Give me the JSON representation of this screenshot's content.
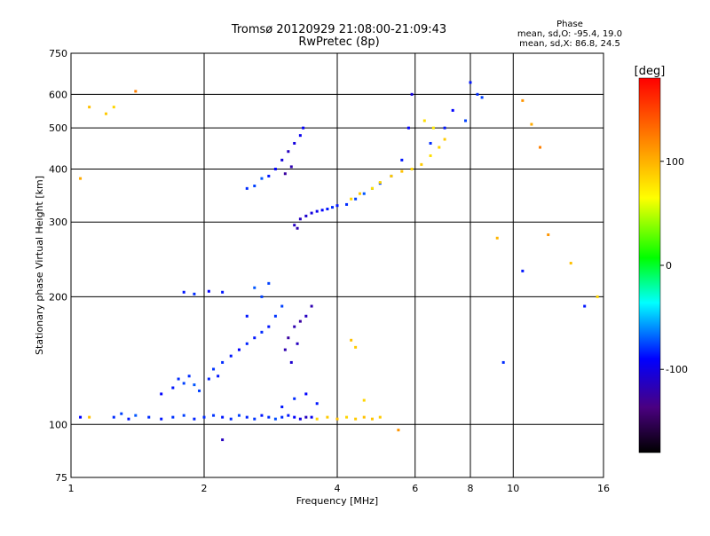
{
  "chart_data": {
    "type": "scatter",
    "title": "Tromsø 20120929 21:08:00-21:09:43",
    "subtitle": "RwPretec (8p)",
    "xlabel": "Frequency [MHz]",
    "ylabel": "Stationary phase Virtual Height [km]",
    "x_scale": "log",
    "y_scale": "log",
    "xlim": [
      1,
      16
    ],
    "ylim": [
      75,
      750
    ],
    "x_ticks": [
      1,
      2,
      4,
      6,
      8,
      10,
      16
    ],
    "y_ticks": [
      75,
      100,
      200,
      300,
      400,
      500,
      600,
      750
    ],
    "grid": true,
    "stats": {
      "title": "Phase",
      "line1": "mean, sd,O: -95.4, 19.0",
      "line2": "mean, sd,X:  86.8, 24.5"
    },
    "colorbar": {
      "label": "[deg]",
      "range": [
        -180,
        180
      ],
      "ticks": [
        100,
        0,
        -100
      ]
    },
    "series": [
      {
        "points": [
          [
            1.25,
            104,
            -90
          ],
          [
            1.3,
            106,
            -85
          ],
          [
            1.35,
            103,
            -95
          ],
          [
            1.4,
            105,
            -80
          ],
          [
            1.5,
            104,
            -90
          ],
          [
            1.6,
            103,
            -95
          ],
          [
            1.7,
            104,
            -88
          ],
          [
            1.8,
            105,
            -85
          ],
          [
            1.9,
            103,
            -92
          ],
          [
            2.0,
            104,
            -90
          ],
          [
            2.1,
            105,
            -88
          ],
          [
            2.2,
            104,
            -95
          ],
          [
            2.3,
            103,
            -90
          ],
          [
            2.4,
            105,
            -85
          ],
          [
            2.5,
            104,
            -92
          ],
          [
            2.6,
            103,
            -88
          ],
          [
            2.7,
            105,
            -95
          ],
          [
            2.8,
            104,
            -90
          ],
          [
            2.9,
            103,
            -82
          ],
          [
            3.0,
            104,
            -90
          ],
          [
            3.1,
            105,
            -95
          ],
          [
            3.2,
            104,
            -100
          ],
          [
            3.3,
            103,
            -110
          ],
          [
            3.4,
            104,
            -120
          ],
          [
            3.5,
            104,
            -105
          ],
          [
            1.6,
            118,
            -100
          ],
          [
            1.7,
            122,
            -95
          ],
          [
            1.75,
            128,
            -90
          ],
          [
            1.8,
            125,
            -85
          ],
          [
            1.85,
            130,
            -90
          ],
          [
            1.9,
            124,
            -80
          ],
          [
            1.95,
            120,
            -85
          ],
          [
            2.05,
            128,
            -92
          ],
          [
            2.1,
            135,
            -88
          ],
          [
            2.15,
            130,
            -95
          ],
          [
            2.2,
            140,
            -90
          ],
          [
            2.3,
            145,
            -95
          ],
          [
            2.4,
            150,
            -100
          ],
          [
            2.5,
            155,
            -92
          ],
          [
            2.6,
            160,
            -95
          ],
          [
            2.7,
            165,
            -90
          ],
          [
            2.8,
            170,
            -95
          ],
          [
            2.9,
            180,
            -88
          ],
          [
            3.0,
            190,
            -85
          ],
          [
            2.7,
            200,
            -85
          ],
          [
            2.5,
            180,
            -95
          ],
          [
            2.6,
            210,
            -80
          ],
          [
            2.8,
            215,
            -85
          ],
          [
            3.05,
            150,
            -125
          ],
          [
            3.1,
            160,
            -130
          ],
          [
            3.2,
            170,
            -125
          ],
          [
            3.3,
            175,
            -130
          ],
          [
            3.4,
            180,
            -120
          ],
          [
            3.5,
            190,
            -125
          ],
          [
            3.15,
            140,
            -115
          ],
          [
            3.25,
            155,
            -120
          ],
          [
            1.8,
            205,
            -95
          ],
          [
            1.9,
            203,
            -90
          ],
          [
            2.05,
            206,
            -100
          ],
          [
            2.2,
            205,
            -95
          ],
          [
            2.5,
            360,
            -90
          ],
          [
            2.6,
            365,
            -85
          ],
          [
            2.7,
            380,
            -80
          ],
          [
            2.8,
            385,
            -95
          ],
          [
            2.9,
            400,
            -100
          ],
          [
            3.0,
            420,
            -110
          ],
          [
            3.1,
            440,
            -120
          ],
          [
            3.2,
            460,
            -110
          ],
          [
            3.3,
            480,
            -105
          ],
          [
            3.35,
            500,
            -100
          ],
          [
            3.05,
            390,
            -130
          ],
          [
            3.15,
            405,
            -125
          ],
          [
            3.3,
            305,
            -120
          ],
          [
            3.4,
            310,
            -115
          ],
          [
            3.5,
            315,
            -110
          ],
          [
            3.6,
            318,
            -105
          ],
          [
            3.7,
            320,
            -100
          ],
          [
            3.8,
            322,
            -95
          ],
          [
            3.9,
            325,
            -90
          ],
          [
            4.0,
            328,
            -95
          ],
          [
            4.2,
            330,
            -90
          ],
          [
            4.4,
            340,
            -85
          ],
          [
            4.6,
            350,
            -80
          ],
          [
            4.8,
            360,
            -75
          ],
          [
            5.0,
            370,
            -85
          ],
          [
            5.3,
            385,
            -90
          ],
          [
            5.6,
            420,
            -95
          ],
          [
            5.8,
            500,
            -100
          ],
          [
            5.9,
            600,
            -110
          ],
          [
            3.2,
            295,
            -120
          ],
          [
            3.25,
            290,
            -125
          ],
          [
            6.5,
            460,
            -90
          ],
          [
            7.0,
            500,
            -95
          ],
          [
            7.3,
            550,
            -100
          ],
          [
            7.8,
            520,
            -85
          ],
          [
            8.0,
            640,
            -95
          ],
          [
            8.3,
            600,
            -90
          ],
          [
            8.5,
            590,
            -85
          ],
          [
            3.0,
            110,
            -95
          ],
          [
            3.2,
            115,
            -90
          ],
          [
            3.4,
            118,
            -100
          ],
          [
            3.6,
            112,
            -95
          ],
          [
            2.2,
            92,
            -120
          ],
          [
            1.05,
            104,
            -100
          ],
          [
            10.5,
            230,
            -95
          ],
          [
            9.5,
            140,
            -90
          ],
          [
            14.5,
            190,
            -95
          ]
        ]
      },
      {
        "points": [
          [
            3.6,
            103,
            80
          ],
          [
            3.8,
            104,
            85
          ],
          [
            4.0,
            103,
            90
          ],
          [
            4.2,
            104,
            80
          ],
          [
            4.4,
            103,
            85
          ],
          [
            4.6,
            104,
            90
          ],
          [
            4.8,
            103,
            88
          ],
          [
            5.0,
            104,
            85
          ],
          [
            4.3,
            340,
            80
          ],
          [
            4.5,
            350,
            85
          ],
          [
            4.8,
            360,
            75
          ],
          [
            5.0,
            372,
            80
          ],
          [
            5.3,
            385,
            85
          ],
          [
            5.6,
            395,
            90
          ],
          [
            5.9,
            400,
            80
          ],
          [
            6.2,
            410,
            85
          ],
          [
            6.5,
            430,
            75
          ],
          [
            6.8,
            450,
            80
          ],
          [
            7.0,
            470,
            85
          ],
          [
            6.6,
            500,
            70
          ],
          [
            6.3,
            520,
            75
          ],
          [
            4.3,
            158,
            90
          ],
          [
            4.4,
            152,
            85
          ],
          [
            4.6,
            114,
            80
          ],
          [
            1.1,
            104,
            90
          ],
          [
            1.1,
            560,
            90
          ],
          [
            1.2,
            540,
            85
          ],
          [
            1.25,
            560,
            80
          ],
          [
            1.4,
            610,
            120
          ],
          [
            10.5,
            580,
            110
          ],
          [
            11.0,
            510,
            100
          ],
          [
            11.5,
            450,
            120
          ],
          [
            12.0,
            280,
            110
          ],
          [
            9.2,
            275,
            95
          ],
          [
            13.5,
            240,
            90
          ],
          [
            15.5,
            200,
            80
          ],
          [
            1.05,
            380,
            100
          ],
          [
            5.5,
            97,
            110
          ]
        ]
      }
    ]
  }
}
